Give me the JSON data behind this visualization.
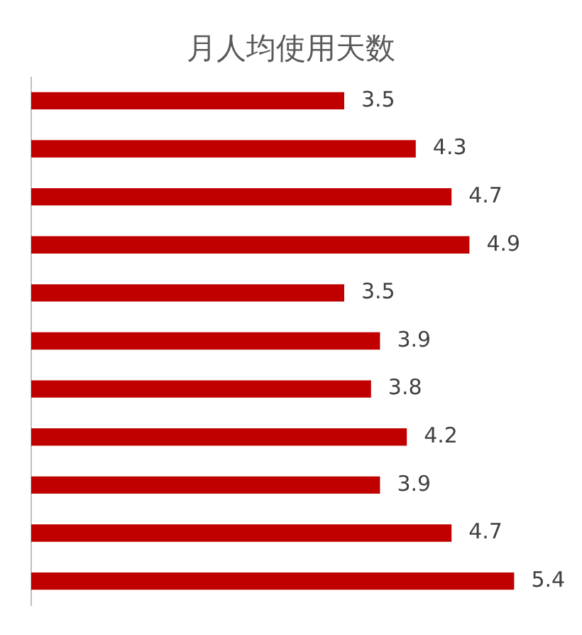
{
  "chart_data": {
    "type": "bar",
    "orientation": "horizontal",
    "title": "月人均使用天数",
    "categories": [
      null,
      null,
      null,
      null,
      null,
      null,
      null,
      null,
      null,
      null,
      null
    ],
    "values": [
      3.5,
      4.3,
      4.7,
      4.9,
      3.5,
      3.9,
      3.8,
      4.2,
      3.9,
      4.7,
      5.4
    ],
    "color": "#c00000",
    "data_labels": true,
    "legend": false
  }
}
